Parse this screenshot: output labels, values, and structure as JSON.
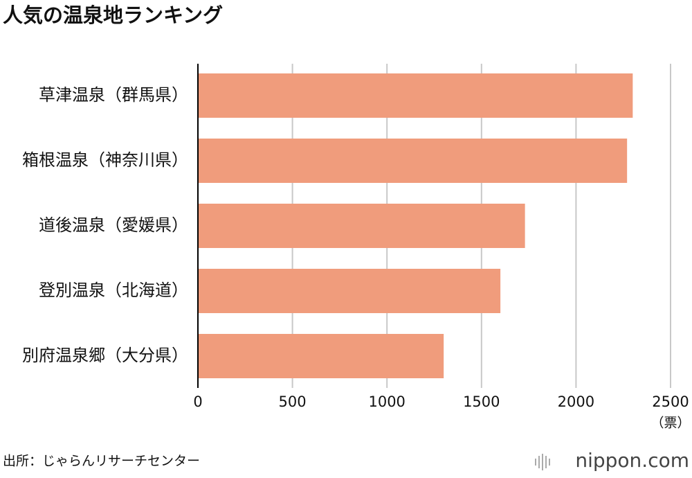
{
  "chart_data": {
    "type": "bar",
    "orientation": "horizontal",
    "title": "人気の温泉地ランキング",
    "categories": [
      "草津温泉（群馬県）",
      "箱根温泉（神奈川県）",
      "道後温泉（愛媛県）",
      "登別温泉（北海道）",
      "別府温泉郷（大分県）"
    ],
    "values": [
      2300,
      2270,
      1730,
      1600,
      1300
    ],
    "color": "#f09c7c",
    "xlim": [
      0,
      2500
    ],
    "xticks": [
      0,
      500,
      1000,
      1500,
      2000,
      2500
    ],
    "x_unit": "（票）",
    "grid": true,
    "source": "出所：じゃらんリサーチセンター",
    "logo": "nippon.com"
  }
}
